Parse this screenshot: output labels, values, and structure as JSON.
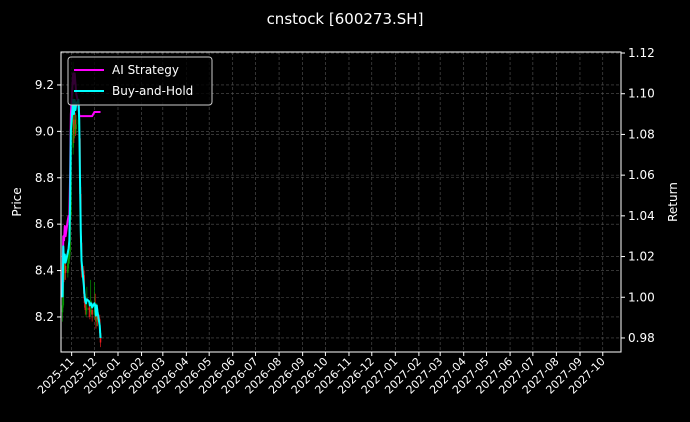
{
  "chart_data": {
    "type": "line",
    "title": "cnstock [600273.SH]",
    "ylabel": "Price",
    "y2label": "Return",
    "ylim": [
      8.049,
      9.342
    ],
    "y2lim": [
      0.9731,
      1.1205
    ],
    "xlim": [
      "2025-10-18",
      "2027-10-25"
    ],
    "yticks": [
      8.2,
      8.4,
      8.6,
      8.8,
      9.0,
      9.2
    ],
    "y2ticks": [
      0.98,
      1.0,
      1.02,
      1.04,
      1.06,
      1.08,
      1.1,
      1.12
    ],
    "xticks": [
      "2025-11",
      "2025-12",
      "2026-01",
      "2026-02",
      "2026-03",
      "2026-04",
      "2026-05",
      "2026-06",
      "2026-07",
      "2026-08",
      "2026-09",
      "2026-10",
      "2026-11",
      "2026-12",
      "2027-01",
      "2027-02",
      "2027-03",
      "2027-04",
      "2027-05",
      "2027-06",
      "2027-07",
      "2027-08",
      "2027-09",
      "2027-10"
    ],
    "grid": true,
    "legend_position": "top-left",
    "colors": {
      "up": "#00a000",
      "down": "#ff2020",
      "ai": "#ff00ff",
      "bh": "#00ffff"
    },
    "dates": [
      "2025-10-20",
      "2025-10-21",
      "2025-10-22",
      "2025-10-23",
      "2025-10-24",
      "2025-10-27",
      "2025-10-28",
      "2025-10-29",
      "2025-10-30",
      "2025-10-31",
      "2025-11-03",
      "2025-11-04",
      "2025-11-05",
      "2025-11-06",
      "2025-11-07",
      "2025-11-10",
      "2025-11-11",
      "2025-11-12",
      "2025-11-13",
      "2025-11-14",
      "2025-11-17",
      "2025-11-18",
      "2025-11-19",
      "2025-11-20",
      "2025-11-21",
      "2025-11-24",
      "2025-11-25",
      "2025-11-26",
      "2025-11-27",
      "2025-11-28",
      "2025-12-01",
      "2025-12-02",
      "2025-12-03",
      "2025-12-04",
      "2025-12-05",
      "2025-12-08",
      "2025-12-09"
    ],
    "price_ohlc": [
      [
        8.22,
        8.3,
        8.18,
        8.25
      ],
      [
        8.25,
        8.52,
        8.24,
        8.46
      ],
      [
        8.46,
        8.48,
        8.35,
        8.39
      ],
      [
        8.39,
        8.45,
        8.36,
        8.42
      ],
      [
        8.42,
        8.44,
        8.36,
        8.39
      ],
      [
        8.39,
        8.47,
        8.37,
        8.43
      ],
      [
        8.43,
        8.49,
        8.41,
        8.45
      ],
      [
        8.45,
        8.52,
        8.43,
        8.48
      ],
      [
        8.48,
        8.68,
        8.46,
        8.64
      ],
      [
        8.64,
        8.98,
        8.62,
        8.93
      ],
      [
        8.93,
        9.3,
        8.9,
        9.05
      ],
      [
        9.05,
        9.12,
        8.95,
        8.99
      ],
      [
        8.99,
        9.1,
        8.97,
        9.05
      ],
      [
        9.05,
        9.08,
        8.98,
        9.01
      ],
      [
        9.01,
        9.07,
        8.99,
        9.03
      ],
      [
        9.03,
        9.1,
        9.0,
        9.05
      ],
      [
        9.05,
        9.06,
        8.93,
        8.97
      ],
      [
        8.97,
        8.99,
        8.7,
        8.73
      ],
      [
        8.73,
        8.76,
        8.49,
        8.52
      ],
      [
        8.52,
        8.55,
        8.37,
        8.4
      ],
      [
        8.4,
        8.42,
        8.28,
        8.3
      ],
      [
        8.3,
        8.38,
        8.24,
        8.26
      ],
      [
        8.26,
        8.3,
        8.21,
        8.23
      ],
      [
        8.23,
        8.27,
        8.2,
        8.23
      ],
      [
        8.23,
        8.33,
        8.21,
        8.24
      ],
      [
        8.24,
        8.26,
        8.2,
        8.23
      ],
      [
        8.23,
        8.25,
        8.19,
        8.22
      ],
      [
        8.22,
        8.36,
        8.2,
        8.23
      ],
      [
        8.23,
        8.27,
        8.21,
        8.23
      ],
      [
        8.23,
        8.25,
        8.18,
        8.21
      ],
      [
        8.21,
        8.35,
        8.19,
        8.23
      ],
      [
        8.23,
        8.3,
        8.2,
        8.22
      ],
      [
        8.22,
        8.24,
        8.15,
        8.18
      ],
      [
        8.18,
        8.26,
        8.16,
        8.22
      ],
      [
        8.22,
        8.24,
        8.16,
        8.19
      ],
      [
        8.19,
        8.21,
        8.11,
        8.13
      ],
      [
        8.13,
        8.15,
        8.07,
        8.09
      ]
    ],
    "series": [
      {
        "name": "AI Strategy",
        "values": [
          1.0,
          1.03,
          1.028,
          1.035,
          1.03,
          1.038,
          1.04,
          1.04,
          1.06,
          1.09,
          1.11,
          1.105,
          1.11,
          1.105,
          1.1,
          1.095,
          1.089,
          1.089,
          1.089,
          1.089,
          1.089,
          1.089,
          1.089,
          1.089,
          1.089,
          1.089,
          1.089,
          1.089,
          1.089,
          1.089,
          1.091,
          1.091,
          1.091,
          1.091,
          1.091,
          1.091,
          1.091
        ]
      },
      {
        "name": "Buy-and-Hold",
        "values": [
          1.0,
          1.025,
          1.017,
          1.021,
          1.017,
          1.022,
          1.024,
          1.028,
          1.047,
          1.082,
          1.097,
          1.09,
          1.097,
          1.092,
          1.095,
          1.097,
          1.087,
          1.058,
          1.033,
          1.018,
          1.006,
          1.001,
          0.998,
          0.997,
          0.999,
          0.998,
          0.996,
          0.997,
          0.997,
          0.995,
          0.997,
          0.996,
          0.991,
          0.996,
          0.993,
          0.986,
          0.98
        ]
      }
    ]
  }
}
